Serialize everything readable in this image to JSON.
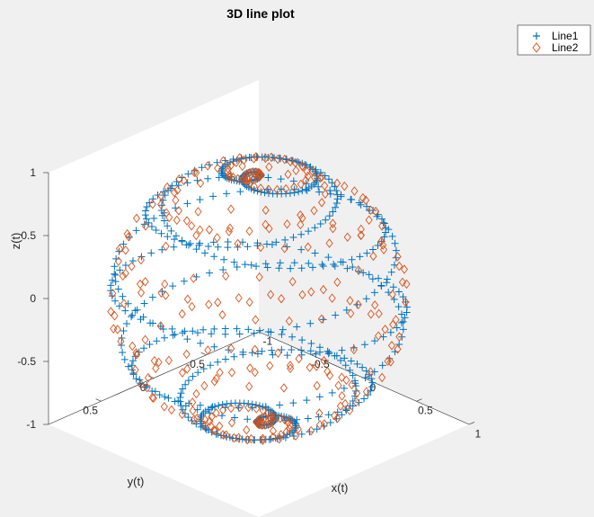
{
  "figure": {
    "background": "#f0f0f0"
  },
  "chart_data": {
    "type": "line3d",
    "title": "3D line plot",
    "xlabel": "x(t)",
    "ylabel": "y(t)",
    "zlabel": "z(t)",
    "xlim": [
      -1,
      1
    ],
    "ylim": [
      -1,
      1
    ],
    "zlim": [
      -1,
      1
    ],
    "xticks": [
      -1,
      -0.5,
      0,
      0.5,
      1
    ],
    "yticks": [
      -0.5,
      0,
      0.5
    ],
    "zticks": [
      -1,
      -0.5,
      0,
      0.5,
      1
    ],
    "xtick_labels": [
      "-1",
      "-0.5",
      "0",
      "0.5",
      "1"
    ],
    "ytick_labels": [
      "-0.5",
      "0",
      "0.5"
    ],
    "ztick_labels": [
      "-1",
      "-0.5",
      "0",
      "0.5",
      "1"
    ],
    "grid": false,
    "box": true,
    "legend_location": "northeast-outside",
    "series": [
      {
        "name": "Line1",
        "marker": "+",
        "color": "#0072bd",
        "t_range": [
          -3.14159,
          3.14159
        ],
        "t_step": 0.01,
        "equation": {
          "x": "sin(t)*cos(10t)",
          "y": "sin(t)*sin(10t)",
          "z": "cos(t)"
        }
      },
      {
        "name": "Line2",
        "marker": "diamond",
        "color": "#d95319",
        "t_range": [
          -3.14159,
          3.14159
        ],
        "t_step": 0.02,
        "equation": {
          "x": "sin(t)*cos(12t)",
          "y": "sin(t)*sin(12t)",
          "z": "cos(t)"
        }
      }
    ]
  }
}
